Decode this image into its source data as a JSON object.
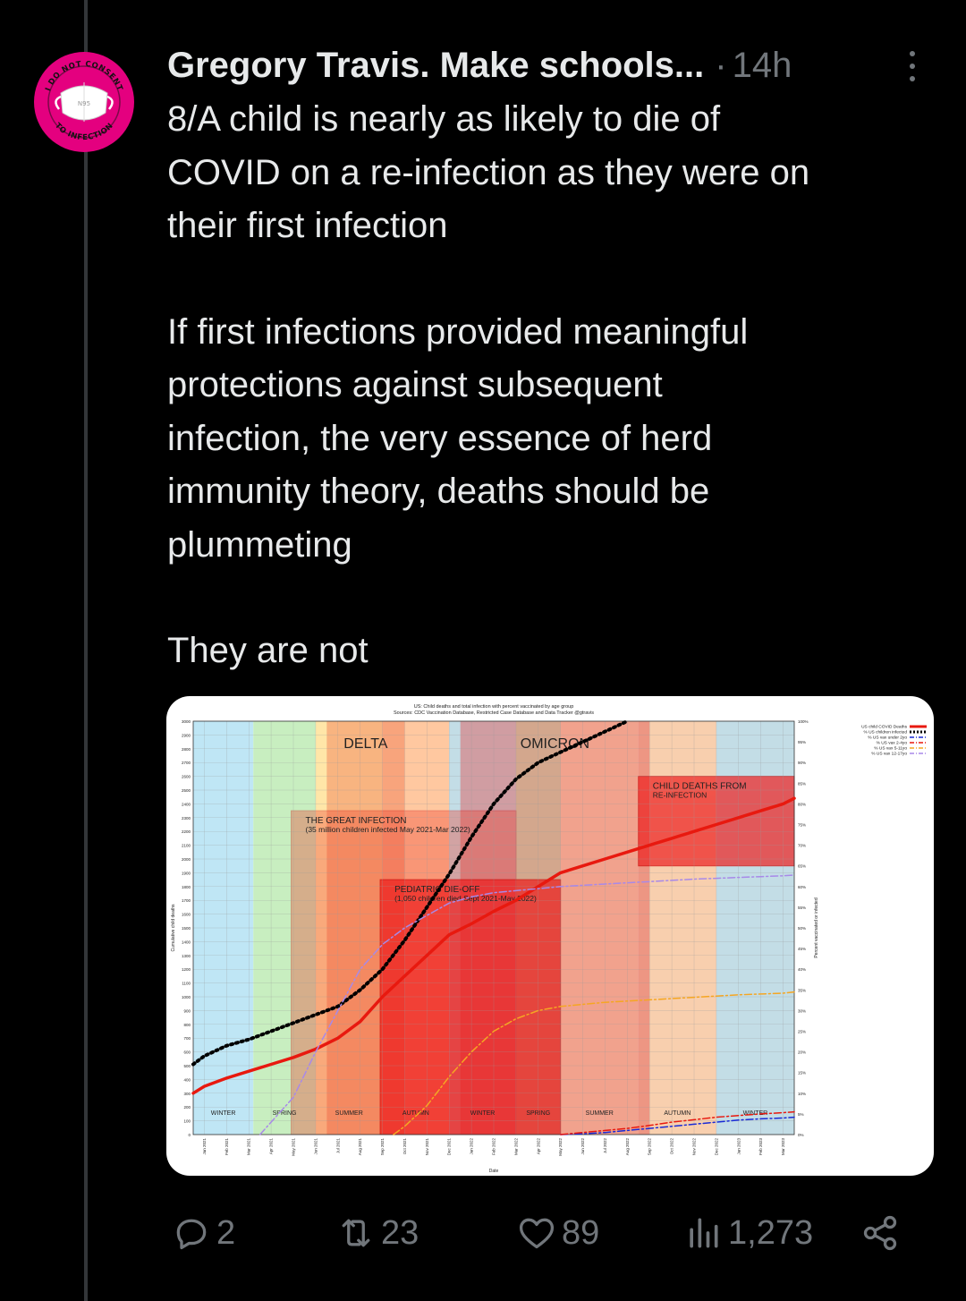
{
  "tweet": {
    "author_name": "Gregory Travis. Make schools...",
    "separator": "·",
    "time": "14h",
    "more_icon": "more-dots-vertical-icon",
    "avatar": {
      "icon": "mask-badge-icon",
      "badge_text": "I DO NOT CONSENT TO INFECTION",
      "mask_text": "N95",
      "colors": {
        "ring": "#e4007f",
        "mask": "#ffffff"
      }
    },
    "paragraphs": [
      {
        "lines": [
          "8/A child is nearly as likely to die of",
          "COVID on a re-infection as they were on",
          "their first infection"
        ]
      },
      {
        "lines": [
          "If first infections provided meaningful",
          "protections against subsequent",
          "infection, the very essence of herd",
          "immunity theory, deaths should be",
          "plummeting"
        ]
      },
      {
        "lines": [
          "They are not"
        ]
      }
    ]
  },
  "actions": {
    "reply": {
      "icon": "reply-icon",
      "count": "2"
    },
    "retweet": {
      "icon": "retweet-icon",
      "count": "23"
    },
    "like": {
      "icon": "heart-icon",
      "count": "89"
    },
    "views": {
      "icon": "views-chart-icon",
      "count": "1,273"
    },
    "share": {
      "icon": "share-icon"
    }
  },
  "chart_data": {
    "type": "line",
    "title": "US: Child deaths and total infection with percent vaccinated by age group",
    "subtitle": "Sources: CDC Vaccination Database, Restricted Case Database and Data Tracker @gtravis",
    "xlabel": "Date",
    "ylabel": "Cumulative child deaths",
    "y2label": "Percent vaccinated or infected",
    "ylim": [
      0,
      3000
    ],
    "y2lim": [
      0,
      100
    ],
    "x_ticks": [
      "Jan 2021",
      "Feb 2021",
      "Mar 2021",
      "Apr 2021",
      "May 2021",
      "Jun 2021",
      "Jul 2021",
      "Aug 2021",
      "Sep 2021",
      "Oct 2021",
      "Nov 2021",
      "Dec 2021",
      "Jan 2022",
      "Feb 2022",
      "Mar 2022",
      "Apr 2022",
      "May 2022",
      "Jun 2022",
      "Jul 2022",
      "Aug 2022",
      "Sep 2022",
      "Oct 2022",
      "Nov 2022",
      "Dec 2022",
      "Jan 2023",
      "Feb 2023",
      "Mar 2023"
    ],
    "y_ticks": [
      0,
      100,
      200,
      300,
      400,
      500,
      600,
      700,
      800,
      900,
      1000,
      1100,
      1200,
      1300,
      1400,
      1500,
      1600,
      1700,
      1800,
      1900,
      2000,
      2100,
      2200,
      2300,
      2400,
      2500,
      2600,
      2700,
      2800,
      2900,
      3000
    ],
    "y_tick_labels": [
      "0",
      "100",
      "200",
      "300",
      "400",
      "500",
      "600",
      "700",
      "800",
      "900",
      "1000",
      "1100",
      "1200",
      "1300",
      "1400",
      "1500",
      "1600",
      "1700",
      "1800",
      "1900",
      "2000",
      "2100",
      "2200",
      "2300",
      "2400",
      "2500",
      "2600",
      "2700",
      "2800",
      "2900",
      "3000"
    ],
    "y2_ticks": [
      0,
      5,
      10,
      15,
      20,
      25,
      30,
      35,
      40,
      45,
      50,
      55,
      60,
      65,
      70,
      75,
      80,
      85,
      90,
      95,
      100
    ],
    "y2_tick_labels": [
      "0%",
      "5%",
      "10%",
      "15%",
      "20%",
      "25%",
      "30%",
      "35%",
      "40%",
      "45%",
      "50%",
      "55%",
      "60%",
      "65%",
      "70%",
      "75%",
      "80%",
      "85%",
      "90%",
      "95%",
      "100%"
    ],
    "seasons": [
      {
        "label": "WINTER",
        "from": -0.5,
        "to": 2.2,
        "color": "#bfe6f5"
      },
      {
        "label": "SPRING",
        "from": 2.2,
        "to": 5.0,
        "color": "#c8eec0"
      },
      {
        "label": "SUMMER",
        "from": 5.0,
        "to": 8.0,
        "color": "#ffe6a8"
      },
      {
        "label": "AUTUMN",
        "from": 8.0,
        "to": 11.0,
        "color": "#ffc8a0"
      },
      {
        "label": "WINTER",
        "from": 11.0,
        "to": 14.0,
        "color": "#c3dde6"
      },
      {
        "label": "SPRING",
        "from": 14.0,
        "to": 16.0,
        "color": "#c8eec0"
      },
      {
        "label": "SUMMER",
        "from": 16.0,
        "to": 19.5,
        "color": "#ffe6c0"
      },
      {
        "label": "AUTUMN",
        "from": 19.5,
        "to": 23.0,
        "color": "#f8cfae"
      },
      {
        "label": "WINTER",
        "from": 23.0,
        "to": 26.5,
        "color": "#c3dde6"
      }
    ],
    "variants": [
      {
        "label": "DELTA",
        "from": 5.5,
        "to": 9.0,
        "color": "#f07850"
      },
      {
        "label": "OMICRON",
        "from": 11.5,
        "to": 20.0,
        "color": "#e05050"
      }
    ],
    "annotations": [
      {
        "lines": [
          "THE GREAT INFECTION",
          "(35 million children infected May 2021-Mar 2022)"
        ],
        "from_x": 3.9,
        "to_x": 14.0,
        "y_top": 2350,
        "color": "#ef3a2a"
      },
      {
        "lines": [
          "PEDIATRIC DIE-OFF",
          "(1,050 children died Sept 2021-May 2022)"
        ],
        "from_x": 7.9,
        "to_x": 16.0,
        "y_top": 1850,
        "color": "#ee1c1c"
      },
      {
        "lines": [
          "CHILD DEATHS FROM",
          "RE-INFECTION"
        ],
        "from_x": 19.5,
        "to_x": 26.5,
        "y_top": 2600,
        "y_bottom": 1950,
        "color": "#ee2020"
      }
    ],
    "legend_position": "outside-right",
    "series": [
      {
        "name": "US child COVID Deaths",
        "axis": "left",
        "color": "#e8190f",
        "style": "solid",
        "x": [
          -0.5,
          0,
          1,
          2,
          3,
          4,
          5,
          6,
          7,
          8,
          9,
          10,
          11,
          12,
          13,
          14,
          15,
          16,
          17,
          18,
          19,
          20,
          21,
          22,
          23,
          24,
          25,
          26,
          26.5
        ],
        "values": [
          300,
          350,
          410,
          460,
          510,
          560,
          620,
          700,
          820,
          1000,
          1150,
          1300,
          1450,
          1530,
          1620,
          1700,
          1800,
          1900,
          1950,
          2000,
          2050,
          2100,
          2150,
          2200,
          2250,
          2300,
          2350,
          2400,
          2440
        ]
      },
      {
        "name": "% US children infected",
        "axis": "right",
        "color": "#000000",
        "style": "dotted",
        "x": [
          -0.5,
          0,
          1,
          2,
          3,
          4,
          5,
          6,
          7,
          8,
          9,
          10,
          11,
          12,
          13,
          14,
          15,
          16,
          17,
          18,
          19
        ],
        "values": [
          17,
          19,
          21.5,
          23,
          25,
          27,
          29,
          31,
          35,
          40,
          47,
          55,
          63,
          72,
          80,
          86,
          90,
          92.5,
          95,
          97.5,
          100
        ]
      },
      {
        "name": "% US vax under 2yo",
        "axis": "right",
        "color": "#1a2bd6",
        "style": "dashdot",
        "x": [
          16,
          17,
          18,
          19,
          20,
          21,
          22,
          23,
          24,
          25,
          26,
          26.5
        ],
        "values": [
          0,
          0.2,
          0.5,
          1,
          1.5,
          2,
          2.5,
          3,
          3.5,
          3.8,
          4,
          4.2
        ]
      },
      {
        "name": "% US vax 2-4yo",
        "axis": "right",
        "color": "#e8190f",
        "style": "dashdot",
        "x": [
          16,
          17,
          18,
          19,
          20,
          21,
          22,
          23,
          24,
          25,
          26,
          26.5
        ],
        "values": [
          0,
          0.5,
          1,
          1.5,
          2.2,
          3,
          3.6,
          4.2,
          4.6,
          5,
          5.3,
          5.5
        ]
      },
      {
        "name": "% US vax 5-11yo",
        "axis": "right",
        "color": "#f5a623",
        "style": "dashdot",
        "x": [
          8.5,
          9,
          10,
          11,
          12,
          13,
          14,
          15,
          16,
          17,
          18,
          19,
          20,
          21,
          22,
          23,
          24,
          25,
          26,
          26.5
        ],
        "values": [
          0,
          2,
          7,
          14,
          20,
          25,
          28,
          30,
          31,
          31.5,
          32,
          32.3,
          32.6,
          32.9,
          33.2,
          33.5,
          33.8,
          34,
          34.2,
          34.5
        ]
      },
      {
        "name": "% US vax 12-17yo",
        "axis": "right",
        "color": "#a889e8",
        "style": "dashdot",
        "x": [
          2.5,
          3,
          4,
          5,
          6,
          7,
          8,
          9,
          10,
          11,
          12,
          13,
          14,
          15,
          16,
          17,
          18,
          19,
          20,
          21,
          22,
          23,
          24,
          25,
          26,
          26.5
        ],
        "values": [
          0,
          3,
          9,
          20,
          30,
          40,
          46,
          50,
          53,
          56,
          57.5,
          58.5,
          59,
          59.5,
          60,
          60.3,
          60.6,
          60.9,
          61.2,
          61.5,
          61.8,
          62,
          62.2,
          62.4,
          62.6,
          62.8
        ]
      }
    ]
  }
}
